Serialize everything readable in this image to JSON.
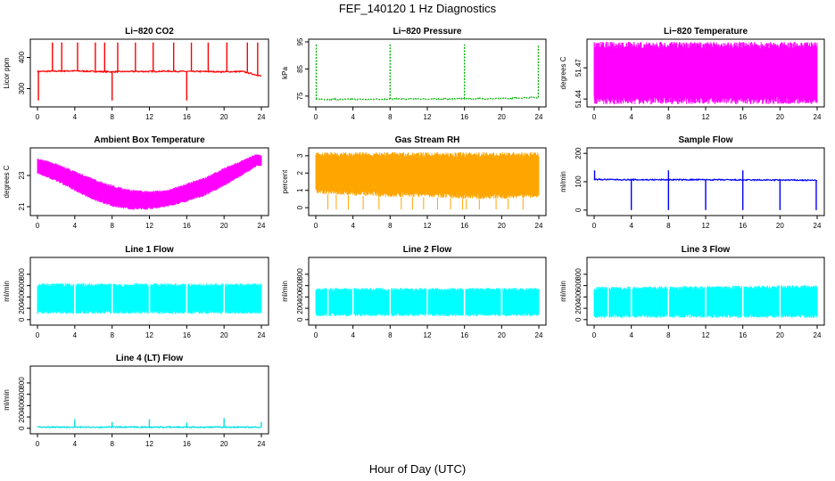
{
  "figure": {
    "title": "FEF_140120  1 Hz Diagnostics",
    "xlabel": "Hour of Day (UTC)"
  },
  "chart_data": [
    {
      "type": "line",
      "title": "Li−820 CO2",
      "ylabel": "Licor ppm",
      "xlim": [
        0,
        24
      ],
      "ylim": [
        250,
        450
      ],
      "xticks": [
        0,
        4,
        8,
        12,
        16,
        20,
        24
      ],
      "yticks": [
        300,
        400
      ],
      "color": "#ff0000",
      "series": [
        {
          "pattern": "baseline_spikes",
          "x": [
            0,
            2,
            4,
            6,
            8,
            10,
            12,
            14,
            16,
            18,
            20,
            22,
            24
          ],
          "y": [
            355,
            356,
            357,
            355,
            354,
            355,
            355,
            356,
            355,
            355,
            354,
            355,
            340
          ],
          "spikes_up_hours": [
            1.6,
            2.6,
            4.3,
            6.2,
            7.2,
            8.6,
            10.5,
            12.4,
            14.6,
            16.5,
            18.3,
            20.3,
            22.5,
            23.6
          ],
          "spikes_up_value": 448,
          "spikes_down_hours": [
            0.1,
            8.0,
            16.0
          ],
          "spikes_down_value": 262
        }
      ]
    },
    {
      "type": "line",
      "title": "Li−820 Pressure",
      "ylabel": "kPa",
      "xlim": [
        0,
        24
      ],
      "ylim": [
        72,
        95
      ],
      "xticks": [
        0,
        4,
        8,
        12,
        16,
        20,
        24
      ],
      "yticks": [
        75,
        85,
        95
      ],
      "color": "#00b000",
      "dashed": true,
      "series": [
        {
          "pattern": "baseline_spikes",
          "x": [
            0,
            4,
            8,
            12,
            16,
            20,
            23.6,
            24
          ],
          "y": [
            73.8,
            73.8,
            73.9,
            73.9,
            74.0,
            74.1,
            74.5,
            74.5
          ],
          "spikes_up_hours": [
            0.05,
            8.0,
            16.0,
            23.95
          ],
          "spikes_up_value": 94,
          "spikes_down_hours": [],
          "spikes_down_value": 74
        }
      ]
    },
    {
      "type": "area",
      "title": "Li−820 Temperature",
      "ylabel": "degrees C",
      "xlim": [
        0,
        24
      ],
      "ylim": [
        51.435,
        51.495
      ],
      "xticks": [
        0,
        4,
        8,
        12,
        16,
        20,
        24
      ],
      "yticks": [
        51.44,
        51.47
      ],
      "color": "#ff00ff",
      "series": [
        {
          "pattern": "band",
          "x": [
            0,
            24
          ],
          "ymin": [
            51.435,
            51.435
          ],
          "ymax": [
            51.495,
            51.495
          ]
        }
      ]
    },
    {
      "type": "area",
      "title": "Ambient Box Temperature",
      "ylabel": "degrees C",
      "xlim": [
        0,
        24
      ],
      "ylim": [
        20.6,
        24.6
      ],
      "xticks": [
        0,
        4,
        8,
        12,
        16,
        20,
        24
      ],
      "yticks": [
        21,
        23
      ],
      "color": "#ff00ff",
      "series": [
        {
          "pattern": "band",
          "x": [
            0,
            2,
            4,
            6,
            8,
            10,
            12,
            14,
            16,
            18,
            20,
            22,
            23.5,
            24
          ],
          "ymin": [
            23.1,
            22.6,
            22.0,
            21.4,
            21.0,
            20.8,
            20.8,
            21.0,
            21.3,
            21.7,
            22.3,
            23.0,
            23.6,
            23.6
          ],
          "ymax": [
            24.1,
            23.8,
            23.3,
            22.8,
            22.4,
            22.1,
            22.0,
            22.1,
            22.5,
            22.9,
            23.5,
            24.0,
            24.4,
            24.3
          ]
        }
      ]
    },
    {
      "type": "area",
      "title": "Gas Stream RH",
      "ylabel": "percent",
      "xlim": [
        0,
        24
      ],
      "ylim": [
        -0.3,
        3.3
      ],
      "xticks": [
        0,
        4,
        8,
        12,
        16,
        20,
        24
      ],
      "yticks": [
        0,
        1,
        2,
        3
      ],
      "color": "#ffa500",
      "series": [
        {
          "pattern": "band",
          "x": [
            0,
            4,
            8,
            12,
            16,
            20,
            24
          ],
          "ymin": [
            0.8,
            0.7,
            0.6,
            0.6,
            0.5,
            0.5,
            0.6
          ],
          "ymax": [
            3.2,
            3.2,
            3.2,
            3.2,
            3.2,
            3.2,
            3.2
          ],
          "dips_hours": [
            1.3,
            2.2,
            3.5,
            5.1,
            6.8,
            9.2,
            10.4,
            11.6,
            13.1,
            14.5,
            15.8,
            16.2,
            17.6,
            19.4,
            20.7,
            22.3
          ],
          "dips_value": -0.1
        }
      ]
    },
    {
      "type": "line",
      "title": "Sample Flow",
      "ylabel": "ml/min",
      "xlim": [
        0,
        24
      ],
      "ylim": [
        -10,
        210
      ],
      "xticks": [
        0,
        4,
        8,
        12,
        16,
        20,
        24
      ],
      "yticks": [
        0,
        100,
        200
      ],
      "color": "#0000ff",
      "series": [
        {
          "pattern": "baseline_spikes",
          "x": [
            0,
            4,
            8,
            12,
            16,
            20,
            24
          ],
          "y": [
            108,
            107,
            107,
            107,
            106,
            106,
            105
          ],
          "spikes_up_hours": [
            0.05,
            8.0,
            16.0
          ],
          "spikes_up_value": 140,
          "spikes_down_hours": [
            4.0,
            8.0,
            12.0,
            16.0,
            20.0,
            23.9
          ],
          "spikes_down_value": 0
        }
      ]
    },
    {
      "type": "area",
      "title": "Line 1 Flow",
      "ylabel": "ml/min",
      "xlim": [
        0,
        24
      ],
      "ylim": [
        -50,
        1050
      ],
      "xticks": [
        0,
        4,
        8,
        12,
        16,
        20,
        24
      ],
      "yticks": [
        0,
        200,
        400,
        600,
        800
      ],
      "color": "#00ffff",
      "series": [
        {
          "pattern": "band",
          "x": [
            0,
            24
          ],
          "ymin": [
            100,
            100
          ],
          "ymax": [
            640,
            640
          ],
          "gaps_hours": [
            4.0,
            8.0,
            12.0,
            16.0,
            20.0
          ]
        }
      ]
    },
    {
      "type": "area",
      "title": "Line 2 Flow",
      "ylabel": "ml/min",
      "xlim": [
        0,
        24
      ],
      "ylim": [
        -50,
        1050
      ],
      "xticks": [
        0,
        4,
        8,
        12,
        16,
        20,
        24
      ],
      "yticks": [
        0,
        200,
        400,
        600,
        800
      ],
      "color": "#00ffff",
      "series": [
        {
          "pattern": "band",
          "x": [
            0,
            24
          ],
          "ymin": [
            60,
            60
          ],
          "ymax": [
            560,
            560
          ],
          "gaps_hours": [
            1.3,
            4.0,
            8.0,
            12.0,
            16.0,
            20.0
          ]
        }
      ]
    },
    {
      "type": "area",
      "title": "Line 3 Flow",
      "ylabel": "ml/min",
      "xlim": [
        0,
        24
      ],
      "ylim": [
        -50,
        1050
      ],
      "xticks": [
        0,
        4,
        8,
        12,
        16,
        20,
        24
      ],
      "yticks": [
        0,
        200,
        400,
        600,
        800
      ],
      "color": "#00ffff",
      "series": [
        {
          "pattern": "band",
          "x": [
            0,
            24
          ],
          "ymin": [
            30,
            30
          ],
          "ymax": [
            580,
            610
          ],
          "gaps_hours": [
            1.5,
            4.0,
            8.0,
            12.0,
            16.0,
            20.0
          ]
        }
      ]
    },
    {
      "type": "line",
      "title": "Line 4 (LT) Flow",
      "ylabel": "ml/min",
      "xlim": [
        0,
        24
      ],
      "ylim": [
        -50,
        1050
      ],
      "xticks": [
        0,
        4,
        8,
        12,
        16,
        20,
        24
      ],
      "yticks": [
        0,
        200,
        400,
        600,
        800
      ],
      "color": "#00e0e0",
      "series": [
        {
          "pattern": "baseline_spikes",
          "x": [
            0,
            24
          ],
          "y": [
            20,
            20
          ],
          "spikes_up_hours": [
            4.0,
            8.0,
            12.0,
            16.0,
            20.0,
            24.0
          ],
          "spikes_up_values": [
            160,
            110,
            160,
            100,
            180,
            110
          ],
          "spikes_down_hours": [],
          "spikes_down_value": 20
        }
      ]
    }
  ]
}
